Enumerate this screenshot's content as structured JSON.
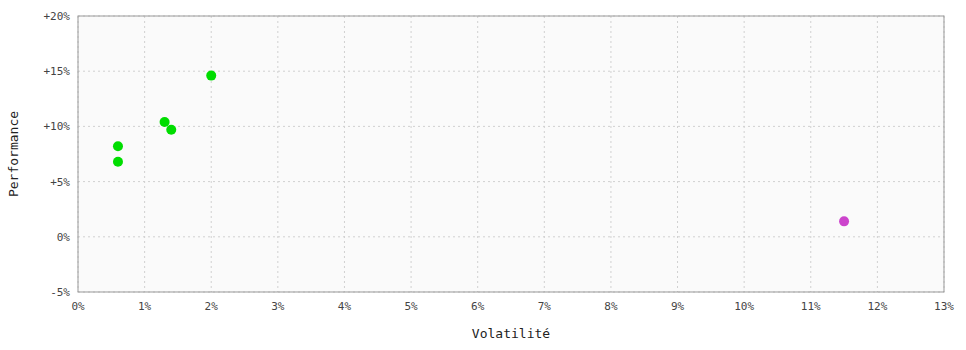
{
  "chart_data": {
    "type": "scatter",
    "xlabel": "Volatilité",
    "ylabel": "Performance",
    "xlim": [
      0,
      0.13
    ],
    "ylim": [
      -0.05,
      0.2
    ],
    "xticks": [
      {
        "value": 0.0,
        "label": "0%"
      },
      {
        "value": 0.01,
        "label": "1%"
      },
      {
        "value": 0.02,
        "label": "2%"
      },
      {
        "value": 0.03,
        "label": "3%"
      },
      {
        "value": 0.04,
        "label": "4%"
      },
      {
        "value": 0.05,
        "label": "5%"
      },
      {
        "value": 0.06,
        "label": "6%"
      },
      {
        "value": 0.07,
        "label": "7%"
      },
      {
        "value": 0.08,
        "label": "8%"
      },
      {
        "value": 0.09,
        "label": "9%"
      },
      {
        "value": 0.1,
        "label": "10%"
      },
      {
        "value": 0.11,
        "label": "11%"
      },
      {
        "value": 0.12,
        "label": "12%"
      },
      {
        "value": 0.13,
        "label": "13%"
      }
    ],
    "yticks": [
      {
        "value": -0.05,
        "label": "-5%"
      },
      {
        "value": 0.0,
        "label": "0%"
      },
      {
        "value": 0.05,
        "label": "+5%"
      },
      {
        "value": 0.1,
        "label": "+10%"
      },
      {
        "value": 0.15,
        "label": "+15%"
      },
      {
        "value": 0.2,
        "label": "+20%"
      }
    ],
    "grid": true,
    "series": [
      {
        "color": "#00dd00",
        "x": [
          0.006,
          0.006,
          0.013,
          0.014,
          0.02
        ],
        "values": [
          0.082,
          0.068,
          0.104,
          0.097,
          0.146
        ]
      },
      {
        "color": "#cc44cc",
        "x": [
          0.115
        ],
        "values": [
          0.014
        ]
      }
    ]
  }
}
